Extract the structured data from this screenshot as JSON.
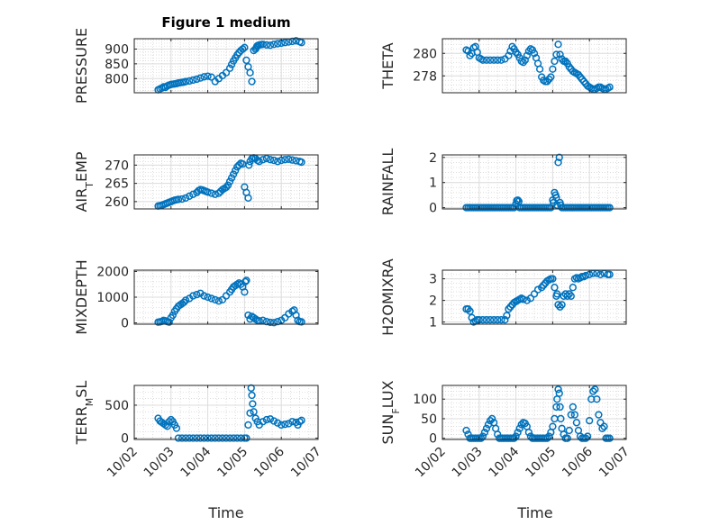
{
  "title": "Figure 1 medium",
  "colors": {
    "marker": "#0072BD",
    "axis": "#262626",
    "grid_major": "#dcdcdc",
    "grid_minor": "#d0d0d0"
  },
  "x_axis": {
    "label": "Time",
    "ticks": [
      "10/02",
      "10/03",
      "10/04",
      "10/05",
      "10/06",
      "10/07"
    ],
    "range_days": [
      2,
      7
    ]
  },
  "chart_data": [
    {
      "type": "scatter",
      "id": "pressure",
      "ylabel": "PRESSURE",
      "ylim": [
        752,
        935
      ],
      "yticks": [
        800,
        850,
        900
      ],
      "grid": true,
      "marker": "circle-open",
      "x": [
        2.65,
        2.7,
        2.75,
        2.8,
        2.85,
        2.9,
        2.95,
        3.0,
        3.05,
        3.1,
        3.15,
        3.2,
        3.25,
        3.3,
        3.35,
        3.4,
        3.5,
        3.6,
        3.7,
        3.8,
        3.9,
        4.0,
        4.1,
        4.2,
        4.3,
        4.4,
        4.5,
        4.6,
        4.65,
        4.7,
        4.75,
        4.8,
        4.85,
        4.9,
        4.95,
        5.0,
        5.05,
        5.1,
        5.15,
        5.2,
        5.25,
        5.3,
        5.32,
        5.34,
        5.36,
        5.4,
        5.45,
        5.5,
        5.6,
        5.7,
        5.8,
        5.9,
        6.0,
        6.1,
        6.2,
        6.3,
        6.4,
        6.5,
        6.55
      ],
      "y": [
        762,
        765,
        768,
        772,
        770,
        775,
        778,
        780,
        781,
        782,
        783,
        785,
        786,
        787,
        788,
        790,
        792,
        795,
        798,
        802,
        806,
        808,
        805,
        790,
        800,
        810,
        820,
        835,
        848,
        860,
        870,
        880,
        888,
        895,
        900,
        905,
        862,
        840,
        820,
        790,
        895,
        900,
        905,
        910,
        912,
        914,
        915,
        916,
        914,
        913,
        916,
        918,
        920,
        922,
        924,
        926,
        928,
        925,
        922
      ]
    },
    {
      "type": "scatter",
      "id": "theta",
      "ylabel": "THETA",
      "ylim": [
        276.5,
        281.3
      ],
      "yticks": [
        278,
        280
      ],
      "grid": true,
      "marker": "circle-open",
      "x": [
        2.65,
        2.7,
        2.75,
        2.8,
        2.85,
        2.9,
        2.95,
        3.0,
        3.05,
        3.1,
        3.2,
        3.3,
        3.4,
        3.5,
        3.6,
        3.7,
        3.8,
        3.85,
        3.9,
        3.95,
        4.0,
        4.05,
        4.1,
        4.15,
        4.2,
        4.25,
        4.3,
        4.35,
        4.4,
        4.45,
        4.5,
        4.55,
        4.6,
        4.65,
        4.7,
        4.75,
        4.8,
        4.85,
        4.9,
        4.95,
        5.0,
        5.05,
        5.1,
        5.15,
        5.2,
        5.25,
        5.3,
        5.35,
        5.4,
        5.45,
        5.5,
        5.55,
        5.6,
        5.65,
        5.7,
        5.75,
        5.8,
        5.85,
        5.9,
        5.95,
        6.0,
        6.05,
        6.1,
        6.15,
        6.2,
        6.25,
        6.3,
        6.35,
        6.4,
        6.45,
        6.5,
        6.55
      ],
      "y": [
        280.3,
        280.2,
        279.8,
        280.0,
        280.5,
        280.6,
        280.1,
        279.6,
        279.5,
        279.4,
        279.4,
        279.4,
        279.4,
        279.4,
        279.4,
        279.5,
        279.8,
        280.2,
        280.6,
        280.4,
        280.1,
        279.9,
        279.6,
        279.3,
        279.2,
        279.4,
        279.8,
        280.2,
        280.4,
        280.3,
        280.0,
        279.6,
        279.1,
        278.6,
        277.9,
        277.6,
        277.5,
        277.5,
        277.7,
        277.9,
        278.6,
        279.3,
        279.9,
        280.8,
        279.9,
        279.5,
        279.3,
        279.3,
        279.1,
        278.8,
        278.6,
        278.4,
        278.3,
        278.2,
        278.1,
        277.9,
        277.7,
        277.5,
        277.3,
        277.1,
        277.0,
        276.9,
        276.8,
        276.8,
        276.9,
        277.0,
        277.0,
        276.9,
        276.8,
        276.8,
        276.9,
        277.0
      ]
    },
    {
      "type": "scatter",
      "id": "air_temp",
      "ylabel": "AIR_TEMP",
      "ylim": [
        258,
        272.8
      ],
      "yticks": [
        260,
        265,
        270
      ],
      "grid": true,
      "marker": "circle-open",
      "x": [
        2.65,
        2.7,
        2.75,
        2.8,
        2.85,
        2.9,
        2.95,
        3.0,
        3.05,
        3.1,
        3.15,
        3.2,
        3.3,
        3.4,
        3.5,
        3.6,
        3.7,
        3.75,
        3.8,
        3.85,
        3.9,
        3.95,
        4.0,
        4.1,
        4.2,
        4.3,
        4.35,
        4.4,
        4.45,
        4.5,
        4.55,
        4.6,
        4.65,
        4.7,
        4.75,
        4.8,
        4.85,
        4.9,
        4.95,
        5.0,
        5.05,
        5.1,
        5.12,
        5.15,
        5.2,
        5.25,
        5.3,
        5.35,
        5.4,
        5.5,
        5.6,
        5.7,
        5.8,
        5.9,
        6.0,
        6.1,
        6.2,
        6.3,
        6.4,
        6.5,
        6.55
      ],
      "y": [
        258.8,
        258.9,
        259.0,
        259.2,
        259.4,
        259.6,
        259.8,
        260.0,
        260.2,
        260.4,
        260.5,
        260.6,
        260.7,
        261.0,
        261.5,
        262.0,
        262.5,
        263.0,
        263.3,
        263.2,
        263.0,
        262.8,
        262.6,
        262.3,
        262.0,
        262.3,
        262.8,
        263.3,
        263.6,
        263.9,
        264.5,
        265.5,
        266.5,
        267.5,
        268.5,
        269.5,
        270.0,
        270.5,
        270.3,
        264.0,
        262.5,
        261.0,
        270.0,
        271.0,
        271.8,
        272.0,
        271.8,
        271.3,
        271.0,
        271.5,
        271.8,
        271.5,
        271.3,
        271.0,
        271.3,
        271.5,
        271.6,
        271.4,
        271.2,
        271.0,
        270.8
      ]
    },
    {
      "type": "scatter",
      "id": "rainfall",
      "ylabel": "RAINFALL",
      "ylim": [
        -0.05,
        2.1
      ],
      "yticks": [
        0,
        1,
        2
      ],
      "grid": true,
      "marker": "circle-open",
      "x": [
        2.65,
        2.7,
        2.75,
        2.8,
        2.85,
        2.9,
        2.95,
        3.0,
        3.05,
        3.1,
        3.15,
        3.2,
        3.25,
        3.3,
        3.35,
        3.4,
        3.45,
        3.5,
        3.55,
        3.6,
        3.65,
        3.7,
        3.75,
        3.8,
        3.85,
        3.9,
        3.95,
        4.0,
        4.02,
        4.05,
        4.08,
        4.1,
        4.15,
        4.2,
        4.25,
        4.3,
        4.35,
        4.4,
        4.45,
        4.5,
        4.55,
        4.6,
        4.65,
        4.7,
        4.75,
        4.8,
        4.85,
        4.9,
        4.95,
        5.0,
        5.02,
        5.05,
        5.08,
        5.1,
        5.12,
        5.15,
        5.18,
        5.2,
        5.22,
        5.25,
        5.3,
        5.35,
        5.4,
        5.45,
        5.5,
        5.55,
        5.6,
        5.65,
        5.7,
        5.75,
        5.8,
        5.85,
        5.9,
        5.95,
        6.0,
        6.05,
        6.1,
        6.15,
        6.2,
        6.25,
        6.3,
        6.35,
        6.4,
        6.45,
        6.5,
        6.55
      ],
      "y": [
        0,
        0,
        0,
        0,
        0,
        0,
        0,
        0,
        0,
        0,
        0,
        0,
        0,
        0,
        0,
        0,
        0,
        0,
        0,
        0,
        0,
        0,
        0,
        0,
        0,
        0,
        0,
        0.15,
        0.28,
        0.3,
        0.25,
        0,
        0,
        0,
        0,
        0,
        0,
        0,
        0,
        0,
        0,
        0,
        0,
        0,
        0,
        0,
        0,
        0,
        0,
        0.3,
        0.2,
        0.6,
        0.5,
        0.4,
        0.1,
        1.8,
        2.0,
        0.2,
        0.1,
        0,
        0,
        0,
        0,
        0,
        0,
        0,
        0,
        0,
        0,
        0,
        0,
        0,
        0,
        0,
        0,
        0,
        0,
        0,
        0,
        0,
        0,
        0,
        0,
        0,
        0,
        0
      ]
    },
    {
      "type": "scatter",
      "id": "mixdepth",
      "ylabel": "MIXDEPTH",
      "ylim": [
        -50,
        2050
      ],
      "yticks": [
        0,
        1000,
        2000
      ],
      "grid": true,
      "marker": "circle-open",
      "x": [
        2.65,
        2.7,
        2.75,
        2.8,
        2.85,
        2.9,
        2.95,
        3.0,
        3.05,
        3.1,
        3.15,
        3.2,
        3.25,
        3.3,
        3.35,
        3.4,
        3.5,
        3.6,
        3.7,
        3.8,
        3.9,
        4.0,
        4.1,
        4.2,
        4.3,
        4.4,
        4.5,
        4.6,
        4.65,
        4.7,
        4.75,
        4.8,
        4.85,
        4.9,
        4.95,
        5.0,
        5.02,
        5.05,
        5.1,
        5.15,
        5.2,
        5.25,
        5.3,
        5.35,
        5.4,
        5.5,
        5.6,
        5.7,
        5.8,
        5.9,
        6.0,
        6.1,
        6.2,
        6.3,
        6.35,
        6.4,
        6.45,
        6.5,
        6.55
      ],
      "y": [
        30,
        40,
        60,
        100,
        80,
        50,
        30,
        200,
        300,
        450,
        550,
        650,
        700,
        750,
        800,
        880,
        950,
        1050,
        1100,
        1150,
        1050,
        1000,
        950,
        900,
        850,
        900,
        1050,
        1200,
        1300,
        1400,
        1450,
        1500,
        1550,
        1500,
        1400,
        1200,
        1600,
        1650,
        300,
        150,
        250,
        200,
        150,
        100,
        80,
        100,
        50,
        20,
        10,
        50,
        100,
        200,
        350,
        450,
        500,
        300,
        100,
        50,
        40
      ]
    },
    {
      "type": "scatter",
      "id": "h2omixra",
      "ylabel": "H2OMIXRA",
      "ylim": [
        0.9,
        3.4
      ],
      "yticks": [
        1,
        2,
        3
      ],
      "grid": true,
      "marker": "circle-open",
      "x": [
        2.65,
        2.7,
        2.75,
        2.8,
        2.85,
        2.9,
        2.95,
        3.0,
        3.1,
        3.2,
        3.3,
        3.4,
        3.5,
        3.6,
        3.7,
        3.75,
        3.8,
        3.85,
        3.9,
        3.95,
        4.0,
        4.05,
        4.1,
        4.15,
        4.2,
        4.3,
        4.4,
        4.5,
        4.6,
        4.7,
        4.75,
        4.8,
        4.85,
        4.9,
        4.95,
        5.0,
        5.05,
        5.1,
        5.12,
        5.15,
        5.2,
        5.25,
        5.3,
        5.35,
        5.4,
        5.45,
        5.5,
        5.55,
        5.6,
        5.65,
        5.7,
        5.75,
        5.8,
        5.85,
        5.9,
        6.0,
        6.1,
        6.2,
        6.3,
        6.4,
        6.5,
        6.55
      ],
      "y": [
        1.6,
        1.6,
        1.5,
        1.2,
        1.0,
        1.05,
        1.1,
        1.1,
        1.1,
        1.1,
        1.1,
        1.1,
        1.1,
        1.1,
        1.1,
        1.3,
        1.6,
        1.7,
        1.8,
        1.9,
        1.95,
        2.0,
        2.05,
        2.1,
        2.05,
        2.0,
        2.1,
        2.3,
        2.5,
        2.6,
        2.7,
        2.8,
        2.9,
        2.95,
        3.0,
        3.0,
        2.6,
        2.2,
        2.3,
        1.8,
        1.7,
        1.8,
        2.2,
        2.3,
        2.2,
        2.3,
        2.2,
        2.6,
        3.0,
        3.05,
        3.0,
        3.05,
        3.1,
        3.1,
        3.15,
        3.2,
        3.25,
        3.25,
        3.2,
        3.25,
        3.2,
        3.2
      ]
    },
    {
      "type": "scatter",
      "id": "terr_msl",
      "ylabel": "TERR_MSL",
      "ylim": [
        -20,
        800
      ],
      "yticks": [
        0,
        500
      ],
      "grid": true,
      "marker": "circle-open",
      "x": [
        2.65,
        2.7,
        2.75,
        2.8,
        2.85,
        2.9,
        2.95,
        3.0,
        3.05,
        3.1,
        3.15,
        3.2,
        3.3,
        3.4,
        3.5,
        3.6,
        3.7,
        3.8,
        3.9,
        4.0,
        4.1,
        4.2,
        4.3,
        4.4,
        4.5,
        4.6,
        4.7,
        4.8,
        4.9,
        5.0,
        5.05,
        5.1,
        5.15,
        5.18,
        5.2,
        5.22,
        5.25,
        5.3,
        5.35,
        5.4,
        5.5,
        5.6,
        5.7,
        5.8,
        5.9,
        6.0,
        6.1,
        6.2,
        6.3,
        6.4,
        6.45,
        6.5,
        6.55
      ],
      "y": [
        300,
        260,
        240,
        220,
        200,
        180,
        250,
        280,
        250,
        200,
        150,
        0,
        0,
        0,
        0,
        0,
        0,
        0,
        0,
        0,
        0,
        0,
        0,
        0,
        0,
        0,
        0,
        0,
        0,
        0,
        0,
        200,
        380,
        760,
        650,
        520,
        400,
        300,
        250,
        200,
        250,
        280,
        290,
        260,
        230,
        200,
        210,
        220,
        250,
        240,
        200,
        250,
        270
      ]
    },
    {
      "type": "scatter",
      "id": "sun_flux",
      "ylabel": "SUN_FLUX",
      "ylim": [
        -3,
        135
      ],
      "yticks": [
        0,
        50,
        100
      ],
      "grid": true,
      "marker": "circle-open",
      "x": [
        2.65,
        2.7,
        2.75,
        2.8,
        2.85,
        2.9,
        2.95,
        3.0,
        3.05,
        3.1,
        3.15,
        3.2,
        3.25,
        3.3,
        3.35,
        3.4,
        3.45,
        3.5,
        3.55,
        3.6,
        3.65,
        3.7,
        3.75,
        3.8,
        3.85,
        3.9,
        3.95,
        4.0,
        4.05,
        4.1,
        4.15,
        4.2,
        4.25,
        4.3,
        4.35,
        4.4,
        4.45,
        4.5,
        4.55,
        4.6,
        4.65,
        4.7,
        4.75,
        4.8,
        4.85,
        4.9,
        4.95,
        5.0,
        5.05,
        5.1,
        5.12,
        5.15,
        5.18,
        5.2,
        5.22,
        5.25,
        5.3,
        5.35,
        5.4,
        5.45,
        5.5,
        5.55,
        5.6,
        5.65,
        5.7,
        5.75,
        5.8,
        5.85,
        5.9,
        5.95,
        6.0,
        6.05,
        6.1,
        6.15,
        6.2,
        6.25,
        6.3,
        6.35,
        6.4,
        6.45,
        6.5,
        6.55
      ],
      "y": [
        20,
        10,
        0,
        0,
        0,
        0,
        0,
        0,
        0,
        5,
        15,
        25,
        35,
        45,
        50,
        40,
        25,
        10,
        0,
        0,
        0,
        0,
        0,
        0,
        0,
        0,
        0,
        5,
        15,
        25,
        35,
        40,
        38,
        30,
        15,
        5,
        0,
        0,
        0,
        0,
        0,
        0,
        0,
        0,
        0,
        5,
        15,
        30,
        50,
        80,
        100,
        125,
        115,
        80,
        50,
        25,
        10,
        0,
        0,
        20,
        60,
        80,
        60,
        40,
        20,
        5,
        0,
        0,
        0,
        5,
        45,
        100,
        120,
        125,
        100,
        60,
        40,
        25,
        30,
        0,
        0,
        0
      ]
    }
  ]
}
